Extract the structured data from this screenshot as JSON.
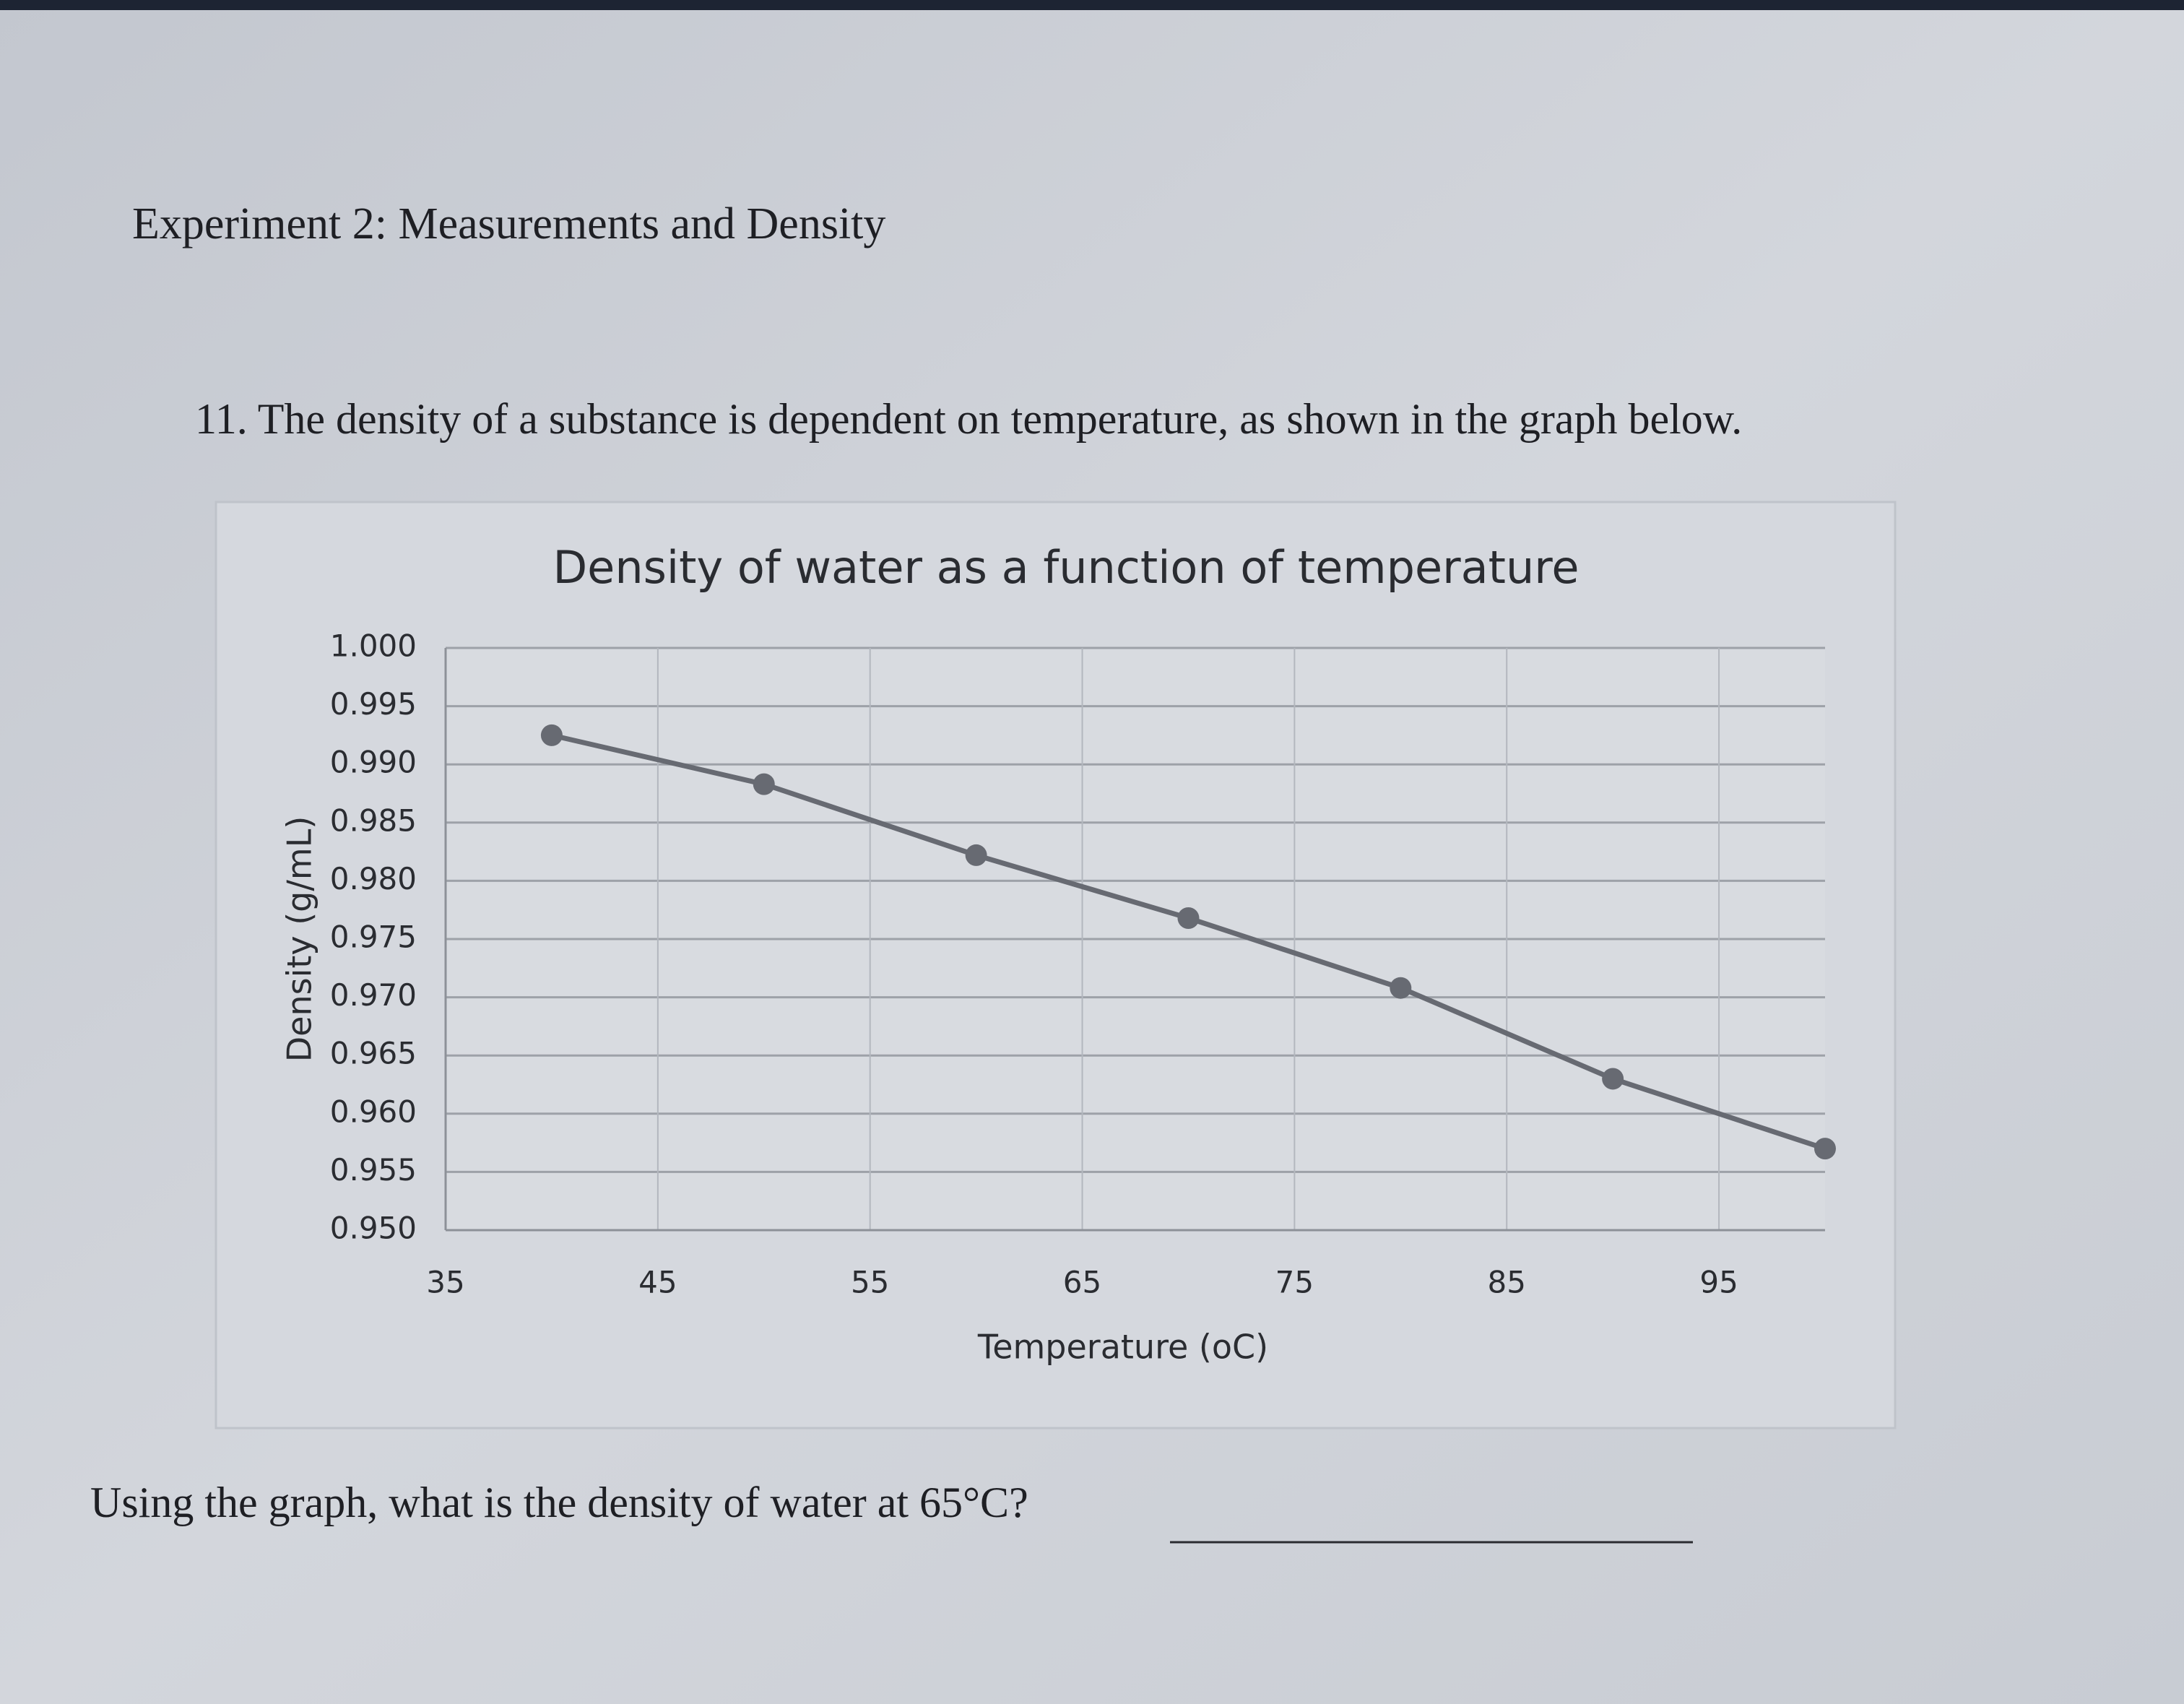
{
  "header": {
    "title": "Experiment 2:  Measurements and Density"
  },
  "question": "11. The density of a substance is dependent on temperature, as shown in the graph below.",
  "chart_data": {
    "type": "line",
    "title": "Density of water as a function of temperature",
    "x_label": "Temperature (oC)",
    "y_label": "Density (g/mL)",
    "x": [
      40,
      50,
      60,
      70,
      80,
      90,
      100
    ],
    "series": [
      {
        "name": "Density",
        "color": "#676a72",
        "values": [
          0.9925,
          0.9883,
          0.9822,
          0.9768,
          0.9708,
          0.963,
          0.957
        ]
      }
    ],
    "xlim": [
      35,
      100
    ],
    "xticks": [
      35,
      45,
      55,
      65,
      75,
      85,
      95
    ],
    "ylim": [
      0.95,
      1.0
    ],
    "yticks": [
      {
        "value": 0.95,
        "label": "0.950"
      },
      0.955,
      {
        "value": 0.96,
        "label": "0.960"
      },
      0.965,
      {
        "value": 0.97,
        "label": "0.970"
      },
      0.975,
      {
        "value": 0.98,
        "label": "0.980"
      },
      0.985,
      {
        "value": 0.99,
        "label": "0.990"
      },
      0.995,
      {
        "value": 1.0,
        "label": "1.000"
      }
    ],
    "grid": true
  },
  "prompt": "Using the graph, what is the density of water at 65°C?"
}
